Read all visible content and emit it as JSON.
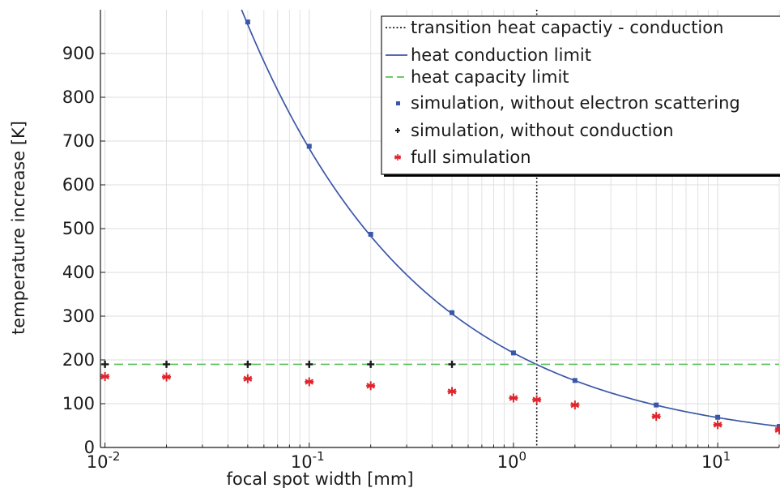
{
  "chart_data": {
    "type": "scatter",
    "title": "",
    "xlabel": "focal spot width [mm]",
    "ylabel": "temperature increase [K]",
    "xscale": "log",
    "xlim": [
      0.0095,
      20
    ],
    "ylim": [
      0,
      1000
    ],
    "grid": true,
    "legend_position": "top-right",
    "x_tick_labels": [
      {
        "value": 0.01,
        "base": "10",
        "exp": "-2"
      },
      {
        "value": 0.1,
        "base": "10",
        "exp": "-1"
      },
      {
        "value": 1,
        "base": "10",
        "exp": "0"
      },
      {
        "value": 10,
        "base": "10",
        "exp": "1"
      }
    ],
    "y_ticks": [
      0,
      100,
      200,
      300,
      400,
      500,
      600,
      700,
      800,
      900
    ],
    "series": [
      {
        "name": "transition heat capactiy - conduction",
        "kind": "vline",
        "x": 1.3,
        "color": "#1a1a1a",
        "style": "dotted"
      },
      {
        "name": "heat conduction limit",
        "kind": "line",
        "x_start": 0.04,
        "x_end": 20,
        "y_at_1mm": 216,
        "exponent": -0.5,
        "color": "#3a57a7",
        "style": "solid"
      },
      {
        "name": "heat capacity limit",
        "kind": "hline",
        "y": 190,
        "color": "#5cc05c",
        "style": "dashed"
      },
      {
        "name": "simulation, without electron scattering",
        "kind": "points",
        "marker": "square",
        "color": "#3a57a7",
        "x": [
          0.05,
          0.1,
          0.2,
          0.5,
          1,
          2,
          5,
          10,
          20
        ],
        "y": [
          972,
          688,
          487,
          308,
          216,
          153,
          97,
          69,
          48
        ]
      },
      {
        "name": "simulation, without conduction",
        "kind": "points",
        "marker": "plus",
        "color": "#1a1a1a",
        "x": [
          0.01,
          0.02,
          0.05,
          0.1,
          0.2,
          0.5
        ],
        "y": [
          190,
          190,
          190,
          190,
          190,
          190
        ]
      },
      {
        "name": "full simulation",
        "kind": "points",
        "marker": "asterisk",
        "color": "#e0242c",
        "x": [
          0.01,
          0.02,
          0.05,
          0.1,
          0.2,
          0.5,
          1,
          1.3,
          2,
          5,
          10,
          20
        ],
        "y": [
          162,
          161,
          157,
          150,
          141,
          128,
          113,
          109,
          97,
          71,
          52,
          40
        ]
      }
    ]
  }
}
